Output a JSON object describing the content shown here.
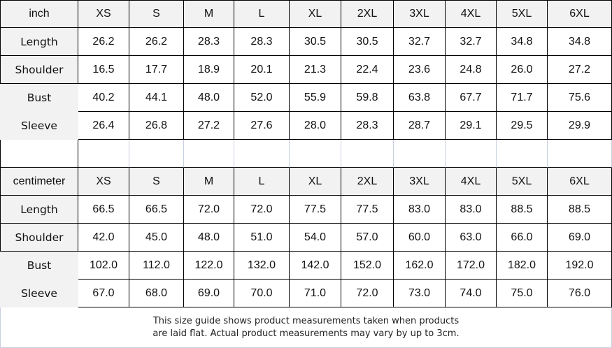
{
  "tables": [
    {
      "unit": "inch",
      "sizes": [
        "XS",
        "S",
        "M",
        "L",
        "XL",
        "2XL",
        "3XL",
        "4XL",
        "5XL",
        "6XL"
      ],
      "rows": [
        {
          "label": "Length",
          "values": [
            "26.2",
            "26.2",
            "28.3",
            "28.3",
            "30.5",
            "30.5",
            "32.7",
            "32.7",
            "34.8",
            "34.8"
          ]
        },
        {
          "label": "Shoulder",
          "values": [
            "16.5",
            "17.7",
            "18.9",
            "20.1",
            "21.3",
            "22.4",
            "23.6",
            "24.8",
            "26.0",
            "27.2"
          ]
        },
        {
          "label": "Bust",
          "values": [
            "40.2",
            "44.1",
            "48.0",
            "52.0",
            "55.9",
            "59.8",
            "63.8",
            "67.7",
            "71.7",
            "75.6"
          ]
        },
        {
          "label": "Sleeve",
          "values": [
            "26.4",
            "26.8",
            "27.2",
            "27.6",
            "28.0",
            "28.3",
            "28.7",
            "29.1",
            "29.5",
            "29.9"
          ]
        }
      ]
    },
    {
      "unit": "centimeter",
      "sizes": [
        "XS",
        "S",
        "M",
        "L",
        "XL",
        "2XL",
        "3XL",
        "4XL",
        "5XL",
        "6XL"
      ],
      "rows": [
        {
          "label": "Length",
          "values": [
            "66.5",
            "66.5",
            "72.0",
            "72.0",
            "77.5",
            "77.5",
            "83.0",
            "83.0",
            "88.5",
            "88.5"
          ]
        },
        {
          "label": "Shoulder",
          "values": [
            "42.0",
            "45.0",
            "48.0",
            "51.0",
            "54.0",
            "57.0",
            "60.0",
            "63.0",
            "66.0",
            "69.0"
          ]
        },
        {
          "label": "Bust",
          "values": [
            "102.0",
            "112.0",
            "122.0",
            "132.0",
            "142.0",
            "152.0",
            "162.0",
            "172.0",
            "182.0",
            "192.0"
          ]
        },
        {
          "label": "Sleeve",
          "values": [
            "67.0",
            "68.0",
            "69.0",
            "70.0",
            "71.0",
            "72.0",
            "73.0",
            "74.0",
            "75.0",
            "76.0"
          ]
        }
      ]
    }
  ],
  "note": {
    "line1": "This size guide shows product measurements taken when products",
    "line2": "are laid flat. Actual product measurements may vary by up to 3cm."
  },
  "colors": {
    "header_bg": "#f2f2f2",
    "border": "#000000",
    "light_border": "#c8d0e0"
  }
}
